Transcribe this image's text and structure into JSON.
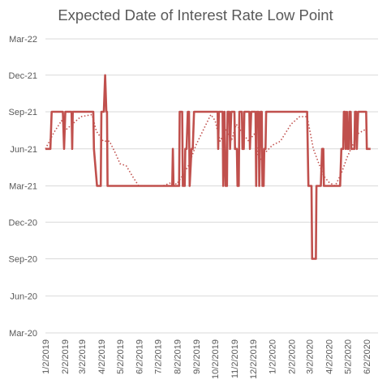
{
  "chart_data": {
    "type": "line",
    "title": "Expected Date of Interest Rate Low Point",
    "xlabel": "",
    "ylabel": "",
    "grid": true,
    "legend": "none",
    "x_axis": {
      "type": "date",
      "range": [
        "2019-01-02",
        "2020-06-20"
      ],
      "tick_labels": [
        "1/2/2019",
        "2/2/2019",
        "3/2/2019",
        "4/2/2019",
        "5/2/2019",
        "6/2/2019",
        "7/2/2019",
        "8/2/2019",
        "9/2/2019",
        "10/2/2019",
        "11/2/2019",
        "12/2/2019",
        "1/2/2020",
        "2/2/2020",
        "3/2/2020",
        "4/2/2020",
        "5/2/2020",
        "6/2/2020"
      ],
      "tick_dates": [
        "2019-01-02",
        "2019-02-02",
        "2019-03-02",
        "2019-04-02",
        "2019-05-02",
        "2019-06-02",
        "2019-07-02",
        "2019-08-02",
        "2019-09-02",
        "2019-10-02",
        "2019-11-02",
        "2019-12-02",
        "2020-01-02",
        "2020-02-02",
        "2020-03-02",
        "2020-04-02",
        "2020-05-02",
        "2020-06-02"
      ]
    },
    "y_axis": {
      "type": "date",
      "range": [
        "2020-03-01",
        "2022-03-01"
      ],
      "tick_labels": [
        "Mar-20",
        "Jun-20",
        "Sep-20",
        "Dec-20",
        "Mar-21",
        "Jun-21",
        "Sep-21",
        "Dec-21",
        "Mar-22"
      ],
      "tick_dates": [
        "2020-03-01",
        "2020-06-01",
        "2020-09-01",
        "2020-12-01",
        "2021-03-01",
        "2021-06-01",
        "2021-09-01",
        "2021-12-01",
        "2022-03-01"
      ]
    },
    "series": [
      {
        "color": "#c0504d",
        "style": "solid",
        "points": [
          [
            "2019-01-02",
            "2021-06-01"
          ],
          [
            "2019-01-10",
            "2021-06-01"
          ],
          [
            "2019-01-12",
            "2021-09-01"
          ],
          [
            "2019-01-30",
            "2021-09-01"
          ],
          [
            "2019-02-01",
            "2021-06-01"
          ],
          [
            "2019-02-03",
            "2021-09-01"
          ],
          [
            "2019-02-13",
            "2021-09-01"
          ],
          [
            "2019-02-14",
            "2021-06-01"
          ],
          [
            "2019-02-15",
            "2021-09-01"
          ],
          [
            "2019-03-20",
            "2021-09-01"
          ],
          [
            "2019-03-21",
            "2021-06-01"
          ],
          [
            "2019-03-26",
            "2021-03-01"
          ],
          [
            "2019-04-01",
            "2021-03-01"
          ],
          [
            "2019-04-02",
            "2021-09-01"
          ],
          [
            "2019-04-06",
            "2021-09-01"
          ],
          [
            "2019-04-08",
            "2021-12-01"
          ],
          [
            "2019-04-10",
            "2021-09-01"
          ],
          [
            "2019-04-11",
            "2021-09-01"
          ],
          [
            "2019-04-12",
            "2021-03-01"
          ],
          [
            "2019-07-25",
            "2021-03-01"
          ],
          [
            "2019-07-26",
            "2021-06-01"
          ],
          [
            "2019-07-27",
            "2021-03-01"
          ],
          [
            "2019-08-05",
            "2021-03-01"
          ],
          [
            "2019-08-06",
            "2021-09-01"
          ],
          [
            "2019-08-10",
            "2021-09-01"
          ],
          [
            "2019-08-11",
            "2021-03-01"
          ],
          [
            "2019-08-14",
            "2021-03-01"
          ],
          [
            "2019-08-15",
            "2021-06-01"
          ],
          [
            "2019-08-17",
            "2021-06-01"
          ],
          [
            "2019-08-19",
            "2021-09-01"
          ],
          [
            "2019-08-21",
            "2021-09-01"
          ],
          [
            "2019-08-22",
            "2021-03-01"
          ],
          [
            "2019-08-25",
            "2021-06-01"
          ],
          [
            "2019-08-27",
            "2021-06-01"
          ],
          [
            "2019-08-29",
            "2021-09-01"
          ],
          [
            "2019-10-06",
            "2021-09-01"
          ],
          [
            "2019-10-07",
            "2021-06-01"
          ],
          [
            "2019-10-08",
            "2021-09-01"
          ],
          [
            "2019-10-14",
            "2021-09-01"
          ],
          [
            "2019-10-15",
            "2021-03-01"
          ],
          [
            "2019-10-17",
            "2021-09-01"
          ],
          [
            "2019-10-19",
            "2021-03-01"
          ],
          [
            "2019-10-21",
            "2021-03-01"
          ],
          [
            "2019-10-22",
            "2021-09-01"
          ],
          [
            "2019-10-25",
            "2021-09-01"
          ],
          [
            "2019-10-26",
            "2021-06-01"
          ],
          [
            "2019-10-28",
            "2021-09-01"
          ],
          [
            "2019-11-02",
            "2021-09-01"
          ],
          [
            "2019-11-03",
            "2021-06-01"
          ],
          [
            "2019-11-06",
            "2021-06-01"
          ],
          [
            "2019-11-07",
            "2021-03-01"
          ],
          [
            "2019-11-09",
            "2021-03-01"
          ],
          [
            "2019-11-10",
            "2021-09-01"
          ],
          [
            "2019-11-14",
            "2021-09-01"
          ],
          [
            "2019-11-15",
            "2021-06-01"
          ],
          [
            "2019-11-17",
            "2021-06-01"
          ],
          [
            "2019-11-18",
            "2021-09-01"
          ],
          [
            "2019-11-26",
            "2021-09-01"
          ],
          [
            "2019-11-27",
            "2021-06-01"
          ],
          [
            "2019-11-29",
            "2021-09-01"
          ],
          [
            "2019-12-06",
            "2021-09-01"
          ],
          [
            "2019-12-07",
            "2021-03-01"
          ],
          [
            "2019-12-08",
            "2021-09-01"
          ],
          [
            "2019-12-11",
            "2021-09-01"
          ],
          [
            "2019-12-12",
            "2021-03-01"
          ],
          [
            "2019-12-14",
            "2021-09-01"
          ],
          [
            "2019-12-16",
            "2021-09-01"
          ],
          [
            "2019-12-17",
            "2021-03-01"
          ],
          [
            "2019-12-19",
            "2021-03-01"
          ],
          [
            "2019-12-20",
            "2021-06-01"
          ],
          [
            "2019-12-22",
            "2021-06-01"
          ],
          [
            "2019-12-23",
            "2021-09-01"
          ],
          [
            "2020-02-27",
            "2021-09-01"
          ],
          [
            "2020-02-29",
            "2021-03-01"
          ],
          [
            "2020-03-05",
            "2021-03-01"
          ],
          [
            "2020-03-06",
            "2020-09-01"
          ],
          [
            "2020-03-12",
            "2020-09-01"
          ],
          [
            "2020-03-13",
            "2021-03-01"
          ],
          [
            "2020-03-20",
            "2021-03-01"
          ],
          [
            "2020-03-22",
            "2021-06-01"
          ],
          [
            "2020-03-24",
            "2021-06-01"
          ],
          [
            "2020-03-25",
            "2021-03-01"
          ],
          [
            "2020-04-20",
            "2021-03-01"
          ],
          [
            "2020-04-22",
            "2021-06-01"
          ],
          [
            "2020-04-25",
            "2021-06-01"
          ],
          [
            "2020-04-26",
            "2021-09-01"
          ],
          [
            "2020-04-28",
            "2021-09-01"
          ],
          [
            "2020-04-29",
            "2021-06-01"
          ],
          [
            "2020-05-01",
            "2021-09-01"
          ],
          [
            "2020-05-02",
            "2021-06-01"
          ],
          [
            "2020-05-04",
            "2021-06-01"
          ],
          [
            "2020-05-05",
            "2021-09-01"
          ],
          [
            "2020-05-07",
            "2021-09-01"
          ],
          [
            "2020-05-08",
            "2021-06-01"
          ],
          [
            "2020-05-13",
            "2021-06-01"
          ],
          [
            "2020-05-14",
            "2021-09-01"
          ],
          [
            "2020-05-16",
            "2021-09-01"
          ],
          [
            "2020-05-17",
            "2021-06-01"
          ],
          [
            "2020-05-19",
            "2021-09-01"
          ],
          [
            "2020-06-01",
            "2021-09-01"
          ],
          [
            "2020-06-02",
            "2021-06-01"
          ],
          [
            "2020-06-08",
            "2021-06-01"
          ]
        ]
      },
      {
        "color": "#c0504d",
        "style": "dotted",
        "points": [
          [
            "2019-01-02",
            "2021-06-01"
          ],
          [
            "2019-01-15",
            "2021-07-10"
          ],
          [
            "2019-01-28",
            "2021-08-10"
          ],
          [
            "2019-02-05",
            "2021-07-20"
          ],
          [
            "2019-02-14",
            "2021-08-01"
          ],
          [
            "2019-02-28",
            "2021-08-20"
          ],
          [
            "2019-03-18",
            "2021-08-25"
          ],
          [
            "2019-03-25",
            "2021-07-15"
          ],
          [
            "2019-04-05",
            "2021-06-20"
          ],
          [
            "2019-04-15",
            "2021-06-20"
          ],
          [
            "2019-04-25",
            "2021-05-20"
          ],
          [
            "2019-05-02",
            "2021-04-25"
          ],
          [
            "2019-05-12",
            "2021-04-20"
          ],
          [
            "2019-05-22",
            "2021-03-25"
          ],
          [
            "2019-06-01",
            "2021-03-01"
          ],
          [
            "2019-07-10",
            "2021-03-01"
          ],
          [
            "2019-07-25",
            "2021-03-10"
          ],
          [
            "2019-08-01",
            "2021-03-05"
          ],
          [
            "2019-08-10",
            "2021-03-25"
          ],
          [
            "2019-08-20",
            "2021-04-20"
          ],
          [
            "2019-09-01",
            "2021-06-10"
          ],
          [
            "2019-09-12",
            "2021-07-15"
          ],
          [
            "2019-09-25",
            "2021-08-25"
          ],
          [
            "2019-10-02",
            "2021-08-10"
          ],
          [
            "2019-10-10",
            "2021-06-20"
          ],
          [
            "2019-10-20",
            "2021-07-20"
          ],
          [
            "2019-10-28",
            "2021-06-20"
          ],
          [
            "2019-11-05",
            "2021-08-01"
          ],
          [
            "2019-11-15",
            "2021-07-10"
          ],
          [
            "2019-11-25",
            "2021-06-20"
          ],
          [
            "2019-12-05",
            "2021-07-10"
          ],
          [
            "2019-12-12",
            "2021-05-01"
          ],
          [
            "2019-12-20",
            "2021-05-20"
          ],
          [
            "2020-01-02",
            "2021-06-10"
          ],
          [
            "2020-01-15",
            "2021-06-20"
          ],
          [
            "2020-02-01",
            "2021-08-01"
          ],
          [
            "2020-02-15",
            "2021-08-20"
          ],
          [
            "2020-02-27",
            "2021-08-20"
          ],
          [
            "2020-03-08",
            "2021-06-01"
          ],
          [
            "2020-03-18",
            "2021-04-20"
          ],
          [
            "2020-03-25",
            "2021-03-25"
          ],
          [
            "2020-04-02",
            "2021-03-10"
          ],
          [
            "2020-04-12",
            "2021-03-01"
          ],
          [
            "2020-04-22",
            "2021-04-01"
          ],
          [
            "2020-05-01",
            "2021-05-10"
          ],
          [
            "2020-05-10",
            "2021-06-10"
          ],
          [
            "2020-05-20",
            "2021-07-10"
          ],
          [
            "2020-06-01",
            "2021-07-20"
          ]
        ]
      }
    ]
  }
}
